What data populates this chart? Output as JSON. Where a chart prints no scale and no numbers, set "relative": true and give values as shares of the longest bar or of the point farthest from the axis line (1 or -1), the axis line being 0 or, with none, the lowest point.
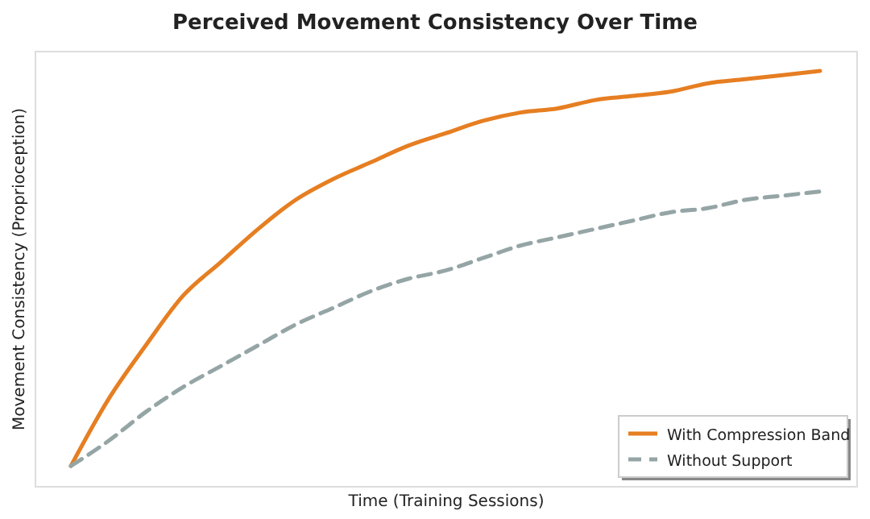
{
  "chart_data": {
    "type": "line",
    "relative": true,
    "title": "Perceived Movement Consistency Over Time",
    "xlabel": "Time (Training Sessions)",
    "ylabel": "Movement Consistency (Proprioception)",
    "categories": [
      null,
      null,
      null,
      null,
      null,
      null,
      null,
      null,
      null,
      null,
      null,
      null,
      null,
      null,
      null,
      null,
      null,
      null,
      null,
      null,
      null
    ],
    "series": [
      {
        "name": "With Compression Band",
        "color": "#e67e22",
        "line_style": "solid",
        "values": [
          0.05,
          0.21,
          0.34,
          0.46,
          0.54,
          0.62,
          0.69,
          0.74,
          0.78,
          0.82,
          0.85,
          0.88,
          0.9,
          0.91,
          0.93,
          0.94,
          0.95,
          0.97,
          0.98,
          0.99,
          1.0
        ]
      },
      {
        "name": "Without Support",
        "color": "#95a5a6",
        "line_style": "dashed",
        "values": [
          0.05,
          0.11,
          0.18,
          0.24,
          0.29,
          0.34,
          0.39,
          0.43,
          0.47,
          0.5,
          0.52,
          0.55,
          0.58,
          0.6,
          0.62,
          0.64,
          0.66,
          0.67,
          0.69,
          0.7,
          0.71
        ]
      }
    ],
    "legend": "bottom right",
    "marker": "none"
  }
}
